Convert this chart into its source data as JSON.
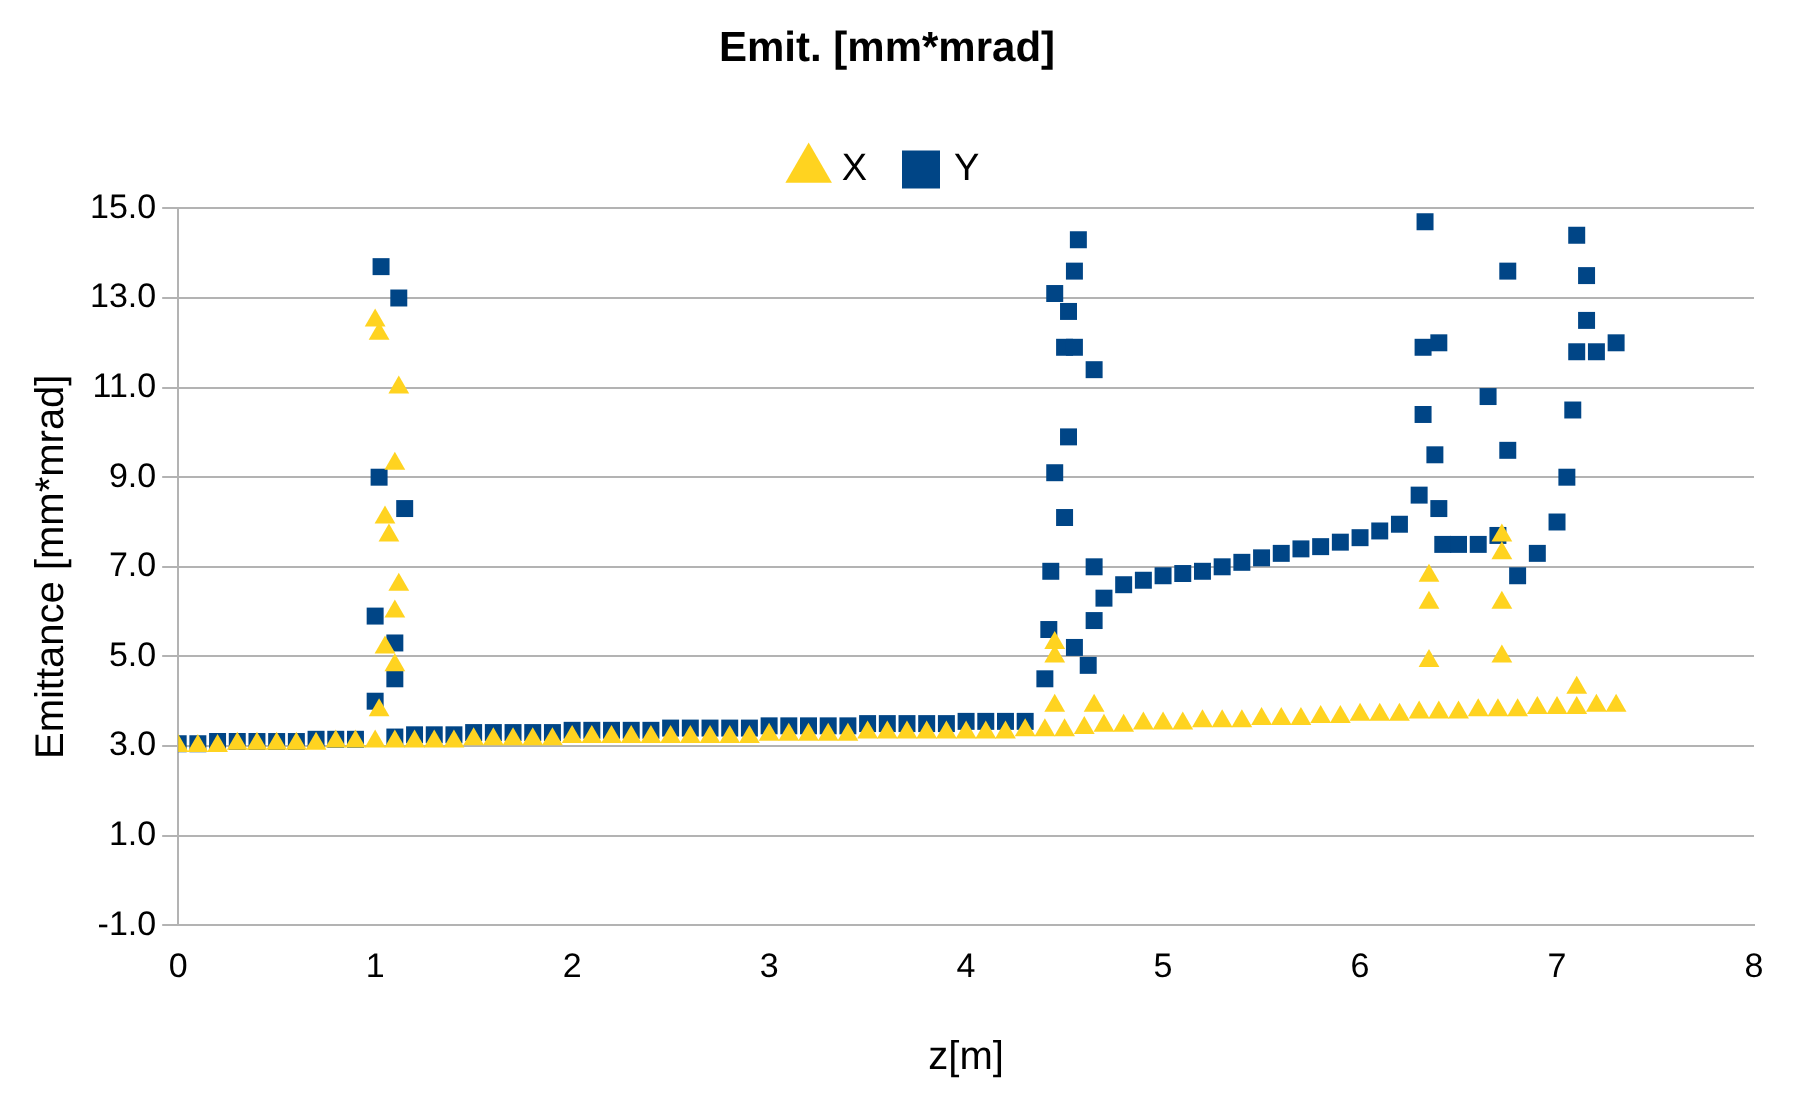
{
  "chart_data": {
    "type": "scatter",
    "title": "Emit. [mm*mrad]",
    "xlabel": "z[m]",
    "ylabel": "Emittance [mm*mrad]",
    "xlim": [
      0,
      8
    ],
    "xticks": [
      0,
      1,
      2,
      3,
      4,
      5,
      6,
      7,
      8
    ],
    "ylim": [
      -1,
      15
    ],
    "yticks": [
      {
        "value": -1,
        "label": "-1.0"
      },
      {
        "value": 1,
        "label": "1.0"
      },
      {
        "value": 3,
        "label": "3.0"
      },
      {
        "value": 5,
        "label": "5.0"
      },
      {
        "value": 7,
        "label": "7.0"
      },
      {
        "value": 9,
        "label": "9.0"
      },
      {
        "value": 11,
        "label": "11.0"
      },
      {
        "value": 13,
        "label": "13.0"
      },
      {
        "value": 15,
        "label": "15.0"
      }
    ],
    "grid": "y",
    "legend": "top",
    "series": [
      {
        "name": "X",
        "color": "#ffd320",
        "marker": "triangle",
        "x": [
          0,
          0.1,
          0.2,
          0.3,
          0.4,
          0.5,
          0.6,
          0.7,
          0.8,
          0.9,
          1.0,
          1.1,
          1.2,
          1.3,
          1.4,
          1.5,
          1.6,
          1.7,
          1.8,
          1.9,
          2.0,
          2.1,
          2.2,
          2.3,
          2.4,
          2.5,
          2.6,
          2.7,
          2.8,
          2.9,
          3.0,
          3.1,
          3.2,
          3.3,
          3.4,
          3.5,
          3.6,
          3.7,
          3.8,
          3.9,
          4.0,
          4.1,
          4.2,
          4.3,
          4.4,
          4.5,
          4.6,
          4.7,
          4.8,
          4.9,
          5.0,
          5.1,
          5.2,
          5.3,
          5.4,
          5.5,
          5.6,
          5.7,
          5.8,
          5.9,
          6.0,
          6.1,
          6.2,
          6.3,
          6.4,
          6.5,
          6.6,
          6.7,
          6.8,
          6.9,
          7.0,
          7.1,
          7.2,
          7.3,
          1.0,
          1.02,
          1.12,
          1.1,
          1.05,
          1.07,
          1.12,
          1.1,
          1.05,
          1.1,
          1.02,
          4.45,
          4.45,
          4.45,
          4.65,
          6.35,
          6.35,
          6.35,
          6.72,
          6.72,
          6.72,
          6.72,
          7.1
        ],
        "values": [
          3.0,
          3.0,
          3.0,
          3.05,
          3.05,
          3.05,
          3.05,
          3.05,
          3.1,
          3.1,
          3.1,
          3.1,
          3.1,
          3.1,
          3.1,
          3.15,
          3.15,
          3.15,
          3.15,
          3.15,
          3.2,
          3.2,
          3.2,
          3.2,
          3.2,
          3.2,
          3.2,
          3.2,
          3.2,
          3.2,
          3.25,
          3.25,
          3.25,
          3.25,
          3.25,
          3.3,
          3.3,
          3.3,
          3.3,
          3.3,
          3.3,
          3.3,
          3.3,
          3.35,
          3.35,
          3.35,
          3.4,
          3.45,
          3.45,
          3.5,
          3.5,
          3.5,
          3.55,
          3.55,
          3.55,
          3.6,
          3.6,
          3.6,
          3.65,
          3.65,
          3.7,
          3.7,
          3.7,
          3.75,
          3.75,
          3.75,
          3.8,
          3.8,
          3.8,
          3.85,
          3.85,
          3.85,
          3.9,
          3.9,
          12.5,
          12.2,
          11.0,
          9.3,
          8.1,
          7.7,
          6.6,
          6.0,
          5.2,
          4.8,
          3.8,
          5.3,
          5.0,
          3.9,
          3.9,
          6.8,
          6.2,
          4.9,
          7.7,
          7.3,
          6.2,
          5.0,
          4.3
        ]
      },
      {
        "name": "Y",
        "color": "#004586",
        "marker": "square",
        "x": [
          0,
          0.1,
          0.2,
          0.3,
          0.4,
          0.5,
          0.6,
          0.7,
          0.8,
          0.9,
          1.0,
          1.0,
          1.02,
          1.03,
          1.1,
          1.12,
          1.1,
          1.15,
          1.1,
          1.2,
          1.3,
          1.4,
          1.5,
          1.6,
          1.7,
          1.8,
          1.9,
          2.0,
          2.1,
          2.2,
          2.3,
          2.4,
          2.5,
          2.6,
          2.7,
          2.8,
          2.9,
          3.0,
          3.1,
          3.2,
          3.3,
          3.4,
          3.5,
          3.6,
          3.7,
          3.8,
          3.9,
          4.0,
          4.1,
          4.2,
          4.3,
          4.4,
          4.42,
          4.43,
          4.45,
          4.45,
          4.5,
          4.52,
          4.5,
          4.52,
          4.55,
          4.57,
          4.55,
          4.55,
          4.65,
          4.65,
          4.62,
          4.65,
          4.7,
          4.8,
          4.9,
          5.0,
          5.1,
          5.2,
          5.3,
          5.4,
          5.5,
          5.6,
          5.7,
          5.8,
          5.9,
          6.0,
          6.1,
          6.2,
          6.3,
          6.32,
          6.33,
          6.32,
          6.4,
          6.38,
          6.4,
          6.42,
          6.5,
          6.6,
          6.65,
          6.7,
          6.75,
          6.75,
          6.8,
          6.9,
          7.0,
          7.05,
          7.08,
          7.1,
          7.1,
          7.15,
          7.15,
          7.2,
          7.3
        ],
        "values": [
          3.05,
          3.05,
          3.1,
          3.1,
          3.1,
          3.1,
          3.1,
          3.15,
          3.15,
          3.15,
          4.0,
          5.9,
          9.0,
          13.7,
          5.3,
          13.0,
          4.5,
          8.3,
          3.2,
          3.25,
          3.25,
          3.25,
          3.3,
          3.3,
          3.3,
          3.3,
          3.3,
          3.35,
          3.35,
          3.35,
          3.35,
          3.35,
          3.4,
          3.4,
          3.4,
          3.4,
          3.4,
          3.45,
          3.45,
          3.45,
          3.45,
          3.45,
          3.5,
          3.5,
          3.5,
          3.5,
          3.5,
          3.55,
          3.55,
          3.55,
          3.55,
          4.5,
          5.6,
          6.9,
          9.1,
          13.1,
          11.9,
          9.9,
          8.1,
          12.7,
          13.6,
          14.3,
          11.9,
          5.2,
          11.4,
          7.0,
          4.8,
          5.8,
          6.3,
          6.6,
          6.7,
          6.8,
          6.85,
          6.9,
          7.0,
          7.1,
          7.2,
          7.3,
          7.4,
          7.45,
          7.55,
          7.65,
          7.8,
          7.95,
          8.6,
          10.4,
          14.7,
          11.9,
          12.0,
          9.5,
          8.3,
          7.5,
          7.5,
          7.5,
          10.8,
          7.7,
          13.6,
          9.6,
          6.8,
          7.3,
          8.0,
          9.0,
          10.5,
          14.4,
          11.8,
          13.5,
          12.5,
          11.8,
          12.0
        ]
      }
    ]
  }
}
